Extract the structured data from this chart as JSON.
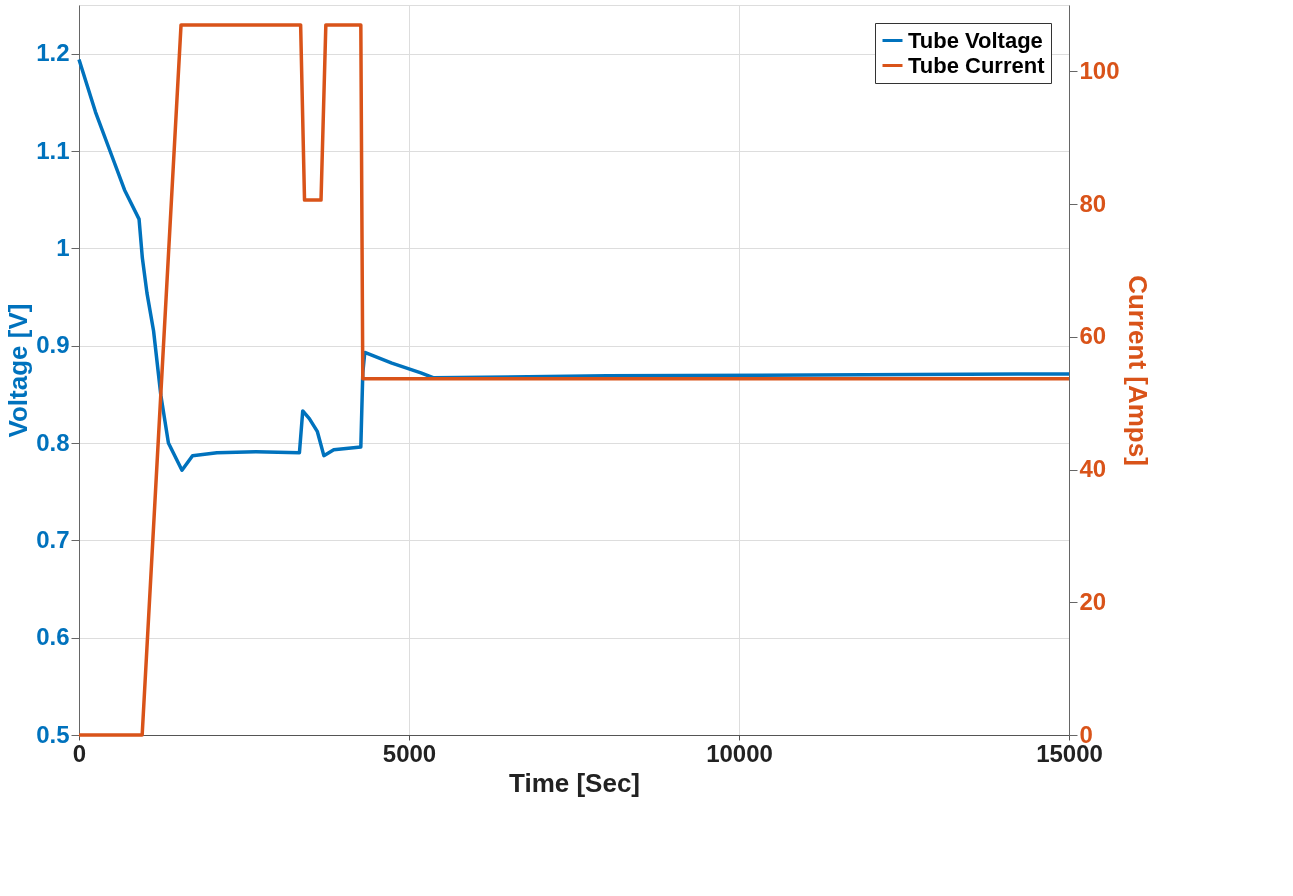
{
  "chart_data": {
    "type": "line",
    "xlabel": "Time [Sec]",
    "ylabel": "Voltage [V]",
    "y2label": "Current [Amps]",
    "xlim": [
      0,
      15000
    ],
    "xticks": [
      0,
      5000,
      10000,
      15000
    ],
    "ylim": [
      0.5,
      1.25
    ],
    "yticks": [
      0.5,
      0.6,
      0.7,
      0.8,
      0.9,
      1,
      1.1,
      1.2
    ],
    "y2lim": [
      0,
      110
    ],
    "y2ticks": [
      0,
      20,
      40,
      60,
      80,
      100
    ],
    "grid": true,
    "legend": "top right",
    "line_style": "solid",
    "marker": "none",
    "series": [
      {
        "name": "Tube Voltage",
        "color": "#0072bd",
        "x": [
          0,
          250,
          470,
          690,
          910,
          960,
          1030,
          1130,
          1240,
          1355,
          1560,
          1720,
          2090,
          2680,
          3340,
          3390,
          3490,
          3610,
          3710,
          3860,
          4270,
          4300,
          4330,
          4740,
          5180,
          5375,
          8000,
          15000
        ],
        "values": [
          1.194,
          1.14,
          1.1,
          1.06,
          1.03,
          0.99,
          0.954,
          0.915,
          0.849,
          0.8,
          0.772,
          0.787,
          0.79,
          0.791,
          0.79,
          0.833,
          0.825,
          0.812,
          0.787,
          0.793,
          0.796,
          0.872,
          0.893,
          0.882,
          0.872,
          0.867,
          0.869,
          0.871
        ]
      },
      {
        "name": "Tube Current",
        "color": "#d95319",
        "axis": "y2",
        "x": [
          0,
          957,
          1546,
          3358,
          3417,
          3667,
          3740,
          4270,
          4300,
          15000
        ],
        "values": [
          0,
          0,
          107,
          107,
          80.6,
          80.6,
          107,
          107,
          53.7,
          53.7
        ]
      }
    ]
  }
}
